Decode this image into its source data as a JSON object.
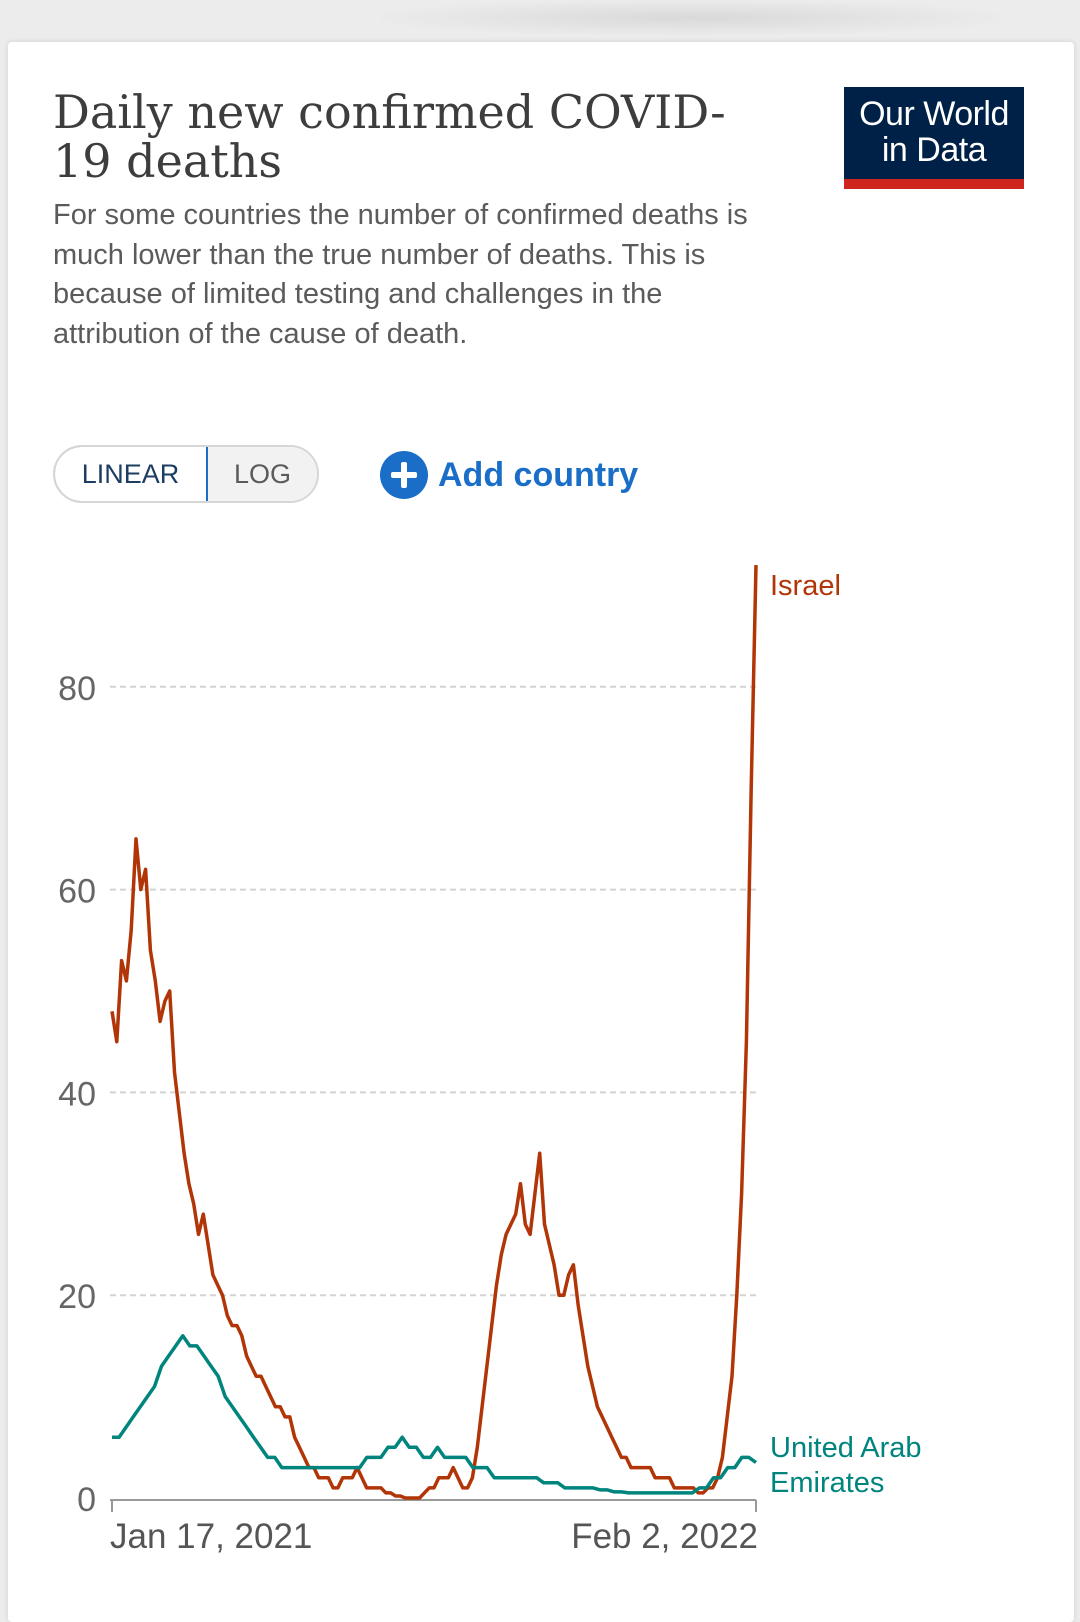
{
  "header": {
    "title": "Daily new confirmed COVID-19 deaths",
    "subtitle": "For some countries the number of confirmed deaths is much lower than the true number of deaths. This is because of limited testing and challenges in the attribution of the cause of death.",
    "logo_line1": "Our World",
    "logo_line2": "in Data"
  },
  "controls": {
    "linear_label": "LINEAR",
    "log_label": "LOG",
    "add_country_label": "Add country",
    "selected_scale": "linear"
  },
  "colors": {
    "israel": "#b13507",
    "uae": "#00847e",
    "brand_navy": "#002147",
    "brand_red": "#ce261e",
    "accent_blue": "#1a6ec7"
  },
  "chart_data": {
    "type": "line",
    "title": "Daily new confirmed COVID-19 deaths",
    "x_tick_labels": [
      "Jan 17, 2021",
      "Feb 2, 2022"
    ],
    "y_ticks": [
      0,
      20,
      40,
      60,
      80
    ],
    "ylim": [
      0,
      92
    ],
    "grid": true,
    "series": [
      {
        "name": "Israel",
        "color": "#b13507",
        "values": [
          48,
          45,
          53,
          51,
          56,
          65,
          60,
          62,
          54,
          51,
          47,
          49,
          50,
          42,
          38,
          34,
          31,
          29,
          26,
          28,
          25,
          22,
          21,
          20,
          18,
          17,
          17,
          16,
          14,
          13,
          12,
          12,
          11,
          10,
          9,
          9,
          8,
          8,
          6,
          5,
          4,
          3,
          3,
          2,
          2,
          2,
          1,
          1,
          2,
          2,
          2,
          3,
          2,
          1,
          1,
          1,
          1,
          0.5,
          0.5,
          0.2,
          0.2,
          0,
          0,
          0,
          0,
          0.5,
          1,
          1,
          2,
          2,
          2,
          3,
          2,
          1,
          1,
          2,
          5,
          9,
          13,
          17,
          21,
          24,
          26,
          27,
          28,
          31,
          27,
          26,
          30,
          34,
          27,
          25,
          23,
          20,
          20,
          22,
          23,
          19,
          16,
          13,
          11,
          9,
          8,
          7,
          6,
          5,
          4,
          4,
          3,
          3,
          3,
          3,
          3,
          2,
          2,
          2,
          2,
          1,
          1,
          1,
          1,
          1,
          0.5,
          0.5,
          1,
          1,
          2,
          4,
          8,
          12,
          20,
          30,
          45,
          70,
          92
        ]
      },
      {
        "name": "United Arab Emirates",
        "color": "#00847e",
        "values": [
          6,
          6,
          7,
          8,
          9,
          10,
          11,
          13,
          14,
          15,
          16,
          15,
          15,
          14,
          13,
          12,
          10,
          9,
          8,
          7,
          6,
          5,
          4,
          4,
          3,
          3,
          3,
          3,
          3,
          3,
          3,
          3,
          3,
          3,
          3,
          3,
          4,
          4,
          4,
          5,
          5,
          6,
          5,
          5,
          4,
          4,
          5,
          4,
          4,
          4,
          4,
          3,
          3,
          3,
          2,
          2,
          2,
          2,
          2,
          2,
          2,
          1.5,
          1.5,
          1.5,
          1,
          1,
          1,
          1,
          1,
          0.8,
          0.8,
          0.6,
          0.6,
          0.5,
          0.5,
          0.5,
          0.5,
          0.5,
          0.5,
          0.5,
          0.5,
          0.5,
          0.5,
          1,
          1,
          2,
          2,
          3,
          3,
          4,
          4,
          3.5
        ]
      }
    ]
  }
}
